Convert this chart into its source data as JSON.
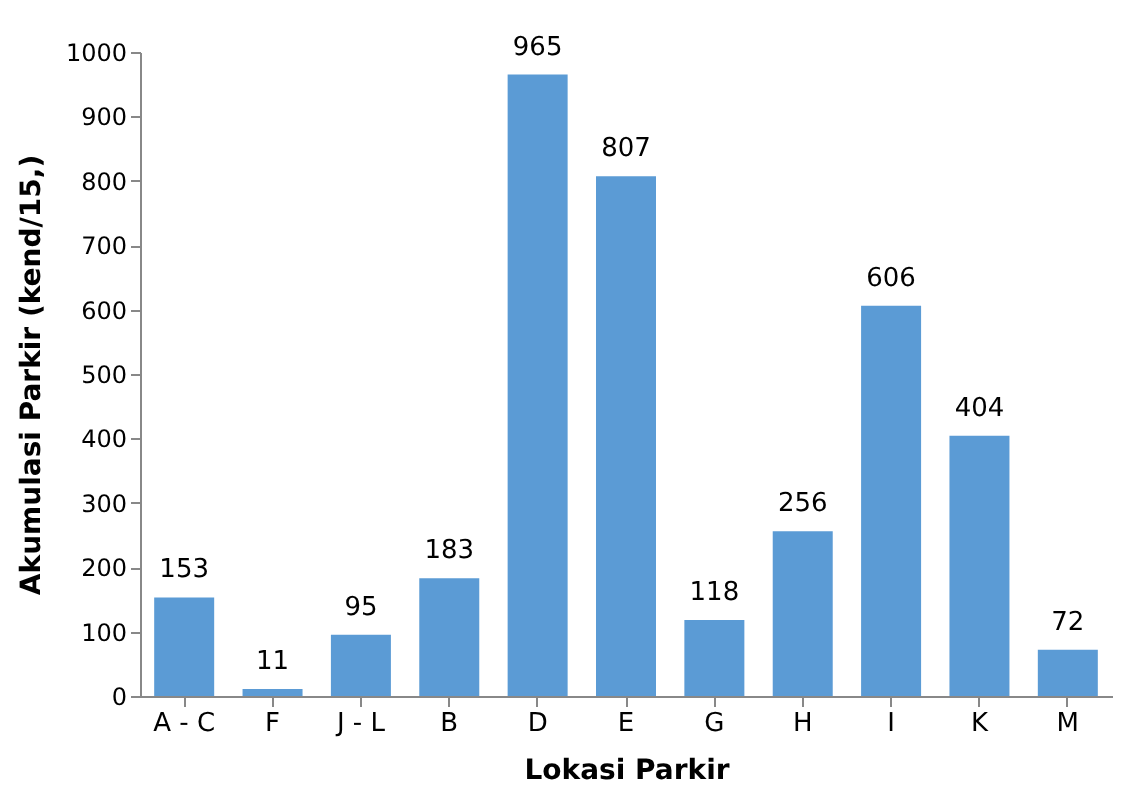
{
  "chart_data": {
    "type": "bar",
    "xlabel": "Lokasi Parkir",
    "ylabel": "Akumulasi Parkir (kend/15,)",
    "categories": [
      "A - C",
      "F",
      "J - L",
      "B",
      "D",
      "E",
      "G",
      "H",
      "I",
      "K",
      "M"
    ],
    "values": [
      153,
      11,
      95,
      183,
      965,
      807,
      118,
      256,
      606,
      404,
      72
    ],
    "color": "#5b9bd5",
    "ylim": [
      0,
      1000
    ],
    "yticks": [
      0,
      100,
      200,
      300,
      400,
      500,
      600,
      700,
      800,
      900,
      1000
    ],
    "grid": false,
    "data_labels": true
  }
}
